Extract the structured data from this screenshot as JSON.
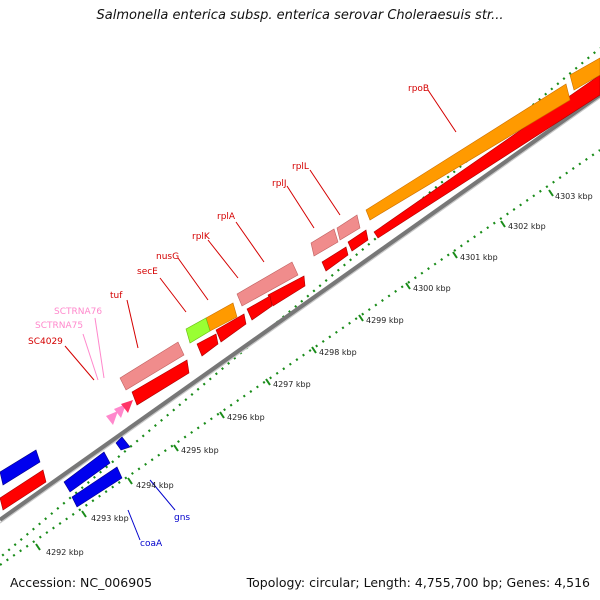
{
  "title": "Salmonella enterica subsp. enterica serovar Choleraesuis str...",
  "footer": {
    "accession": "Accession: NC_006905",
    "summary": "Topology: circular; Length: 4,755,700 bp; Genes: 4,516"
  },
  "scale_labels": [
    "4292 kbp",
    "4293 kbp",
    "4294 kbp",
    "4295 kbp",
    "4296 kbp",
    "4297 kbp",
    "4298 kbp",
    "4299 kbp",
    "4300 kbp",
    "4301 kbp",
    "4302 kbp",
    "4303 kbp"
  ],
  "gene_labels": [
    "rpoB",
    "rplL",
    "rplJ",
    "rplA",
    "rplK",
    "nusG",
    "secE",
    "tuf",
    "SCTRNA76",
    "SCTRNA75",
    "SC4029",
    "gns",
    "coaA"
  ],
  "colors": {
    "forward_gene": "#ff0000",
    "forward_gene_light": "#f08c8c",
    "operon_orange": "#ff9a00",
    "rna_pink": "#ff88cc",
    "secE_green": "#99ff33",
    "reverse_gene": "#0000ee",
    "backbone": "#999999",
    "tick_green": "#1a8c1a"
  }
}
